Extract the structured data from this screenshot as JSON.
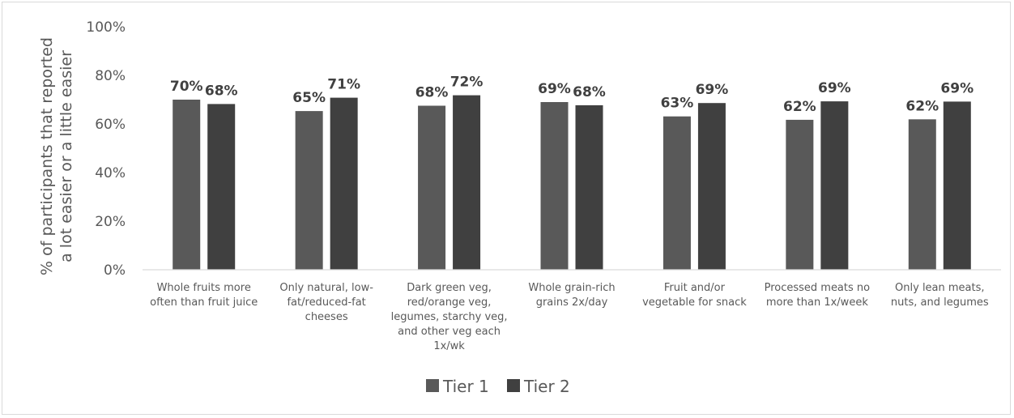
{
  "chart_data": {
    "type": "bar",
    "ylabel": [
      "% of participants that reported",
      "a lot easier or a little easier"
    ],
    "ylim": [
      0,
      100
    ],
    "yticks": [
      "0%",
      "20%",
      "40%",
      "60%",
      "80%",
      "100%"
    ],
    "grid": false,
    "legend_position": "bottom",
    "categories": [
      [
        "Whole fruits more",
        "often than fruit juice"
      ],
      [
        "Only natural, low-",
        "fat/reduced-fat",
        "cheeses"
      ],
      [
        "Dark green veg,",
        "red/orange veg,",
        "legumes, starchy veg,",
        "and other veg each",
        "1x/wk"
      ],
      [
        "Whole grain-rich",
        "grains 2x/day"
      ],
      [
        "Fruit and/or",
        "vegetable for snack"
      ],
      [
        "Processed meats no",
        "more than 1x/week"
      ],
      [
        "Only lean meats,",
        "nuts, and legumes"
      ]
    ],
    "series": [
      {
        "name": "Tier 1",
        "color": "#595959",
        "values": [
          70,
          65.3,
          67.5,
          69,
          63.1,
          61.7,
          61.9
        ],
        "labels": [
          "70%",
          "65%",
          "68%",
          "69%",
          "63%",
          "62%",
          "62%"
        ]
      },
      {
        "name": "Tier 2",
        "color": "#404040",
        "values": [
          68.2,
          70.8,
          71.8,
          67.7,
          68.6,
          69.3,
          69.2
        ],
        "labels": [
          "68%",
          "71%",
          "72%",
          "68%",
          "69%",
          "69%",
          "69%"
        ]
      }
    ]
  }
}
